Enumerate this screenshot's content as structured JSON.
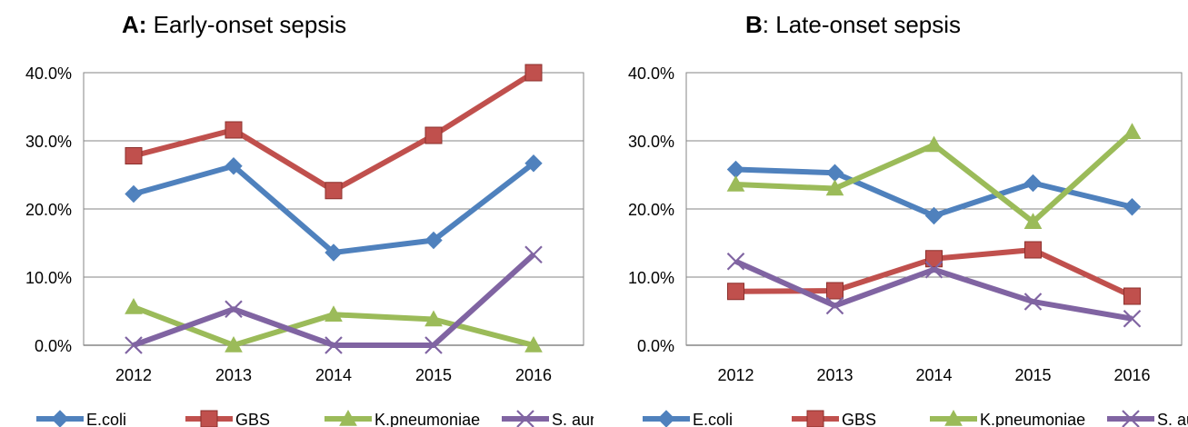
{
  "chart_data": [
    {
      "type": "line",
      "title_letter": "A:",
      "title_text": "Early-onset sepsis",
      "categories": [
        "2012",
        "2013",
        "2014",
        "2015",
        "2016"
      ],
      "y_ticks": [
        "0.0%",
        "10.0%",
        "20.0%",
        "30.0%",
        "40.0%"
      ],
      "ylim": [
        0,
        40
      ],
      "grid": true,
      "legend_position": "bottom",
      "series": [
        {
          "name": "E.coli",
          "color": "#4f81bd",
          "marker": "diamond",
          "values": [
            22.2,
            26.3,
            13.6,
            15.4,
            26.7
          ]
        },
        {
          "name": "GBS",
          "color": "#c0504d",
          "marker": "square",
          "values": [
            27.8,
            31.6,
            22.7,
            30.8,
            40.0
          ]
        },
        {
          "name": "K.pneumoniae",
          "color": "#9bbb59",
          "marker": "triangle",
          "values": [
            5.6,
            0.0,
            4.5,
            3.8,
            0.0
          ]
        },
        {
          "name": "S. aureus",
          "color": "#8064a2",
          "marker": "x",
          "values": [
            0.0,
            5.3,
            0.0,
            0.0,
            13.3
          ]
        }
      ]
    },
    {
      "type": "line",
      "title_letter": "B",
      "title_text": ": Late-onset sepsis",
      "categories": [
        "2012",
        "2013",
        "2014",
        "2015",
        "2016"
      ],
      "y_ticks": [
        "0.0%",
        "10.0%",
        "20.0%",
        "30.0%",
        "40.0%"
      ],
      "ylim": [
        0,
        40
      ],
      "grid": true,
      "legend_position": "bottom",
      "series": [
        {
          "name": "E.coli",
          "color": "#4f81bd",
          "marker": "diamond",
          "values": [
            25.8,
            25.3,
            19.0,
            23.8,
            20.3
          ]
        },
        {
          "name": "GBS",
          "color": "#c0504d",
          "marker": "square",
          "values": [
            7.9,
            8.0,
            12.7,
            14.0,
            7.2
          ]
        },
        {
          "name": "K.pneumoniae",
          "color": "#9bbb59",
          "marker": "triangle",
          "values": [
            23.6,
            23.0,
            29.4,
            18.1,
            31.3
          ]
        },
        {
          "name": "S. aureus",
          "color": "#8064a2",
          "marker": "x",
          "values": [
            12.3,
            5.8,
            11.1,
            6.4,
            3.9
          ]
        }
      ]
    }
  ]
}
